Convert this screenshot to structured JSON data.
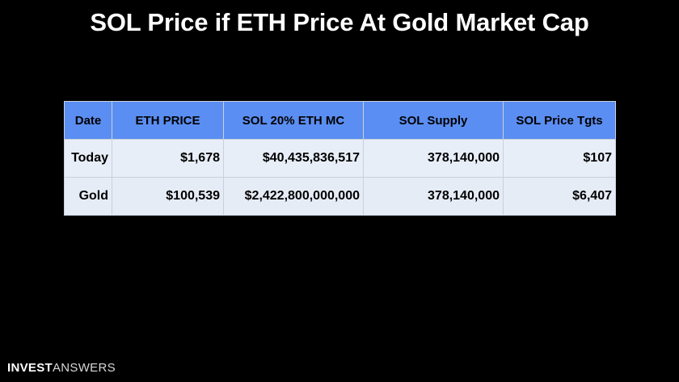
{
  "slide": {
    "title": "SOL Price if ETH Price At Gold Market Cap"
  },
  "table": {
    "headers": [
      "Date",
      "ETH PRICE",
      "SOL 20% ETH MC",
      "SOL Supply",
      "SOL Price Tgts"
    ],
    "rows": [
      [
        "Today",
        "$1,678",
        "$40,435,836,517",
        "378,140,000",
        "$107"
      ],
      [
        "Gold",
        "$100,539",
        "$2,422,800,000,000",
        "378,140,000",
        "$6,407"
      ]
    ]
  },
  "brand": {
    "logo_bold": "INVEST",
    "logo_light": "ANSWERS"
  },
  "colors": {
    "background": "#000000",
    "header_fill": "#5b8ef2",
    "row_fill": "#e9eef7",
    "text_title": "#ffffff"
  }
}
